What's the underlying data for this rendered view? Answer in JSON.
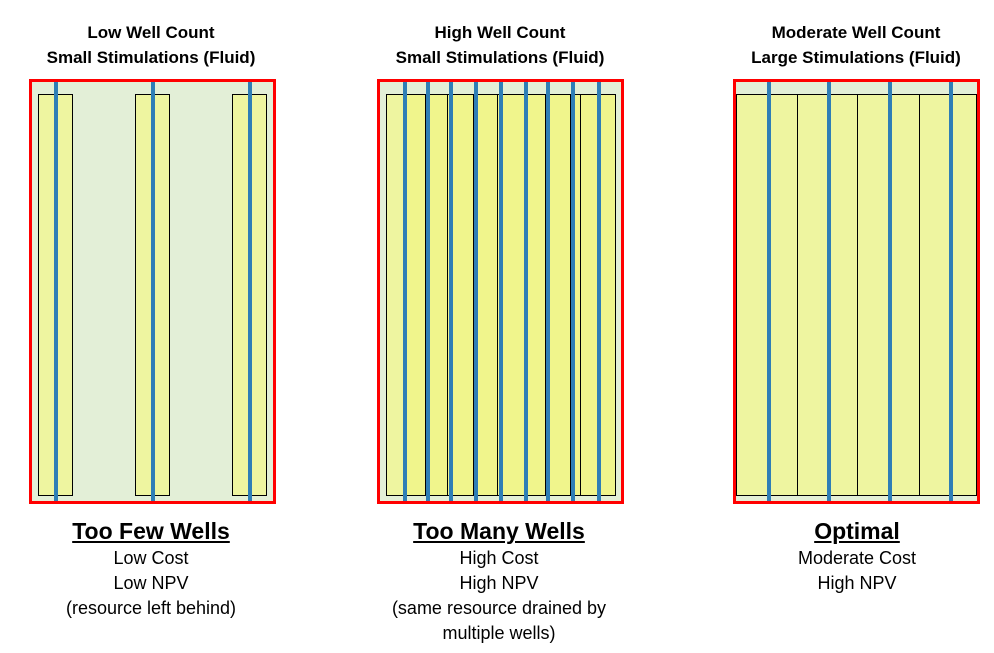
{
  "panels": [
    {
      "title_line1": "Low Well Count",
      "title_line2": "Small Stimulations (Fluid)",
      "caption_title": "Too Few Wells",
      "caption_lines": [
        "Low Cost",
        "Low NPV",
        "(resource left behind)"
      ]
    },
    {
      "title_line1": "High Well Count",
      "title_line2": "Small Stimulations (Fluid)",
      "caption_title": "Too Many Wells",
      "caption_lines": [
        "High Cost",
        "High NPV",
        "(same resource drained by",
        "multiple wells)"
      ]
    },
    {
      "title_line1": "Moderate Well Count",
      "title_line2": "Large Stimulations (Fluid)",
      "caption_title": "Optimal",
      "caption_lines": [
        "Moderate Cost",
        "High NPV"
      ]
    }
  ],
  "colors": {
    "frame_border": "#ff0000",
    "reservoir_background": "#e3efd7",
    "stimulated_zone": "#eef5a0",
    "wellbore": "#2e7eb6"
  },
  "icons": {
    "wellbore": "vertical-blue-line",
    "stimulated_zone": "yellow-rectangle"
  }
}
